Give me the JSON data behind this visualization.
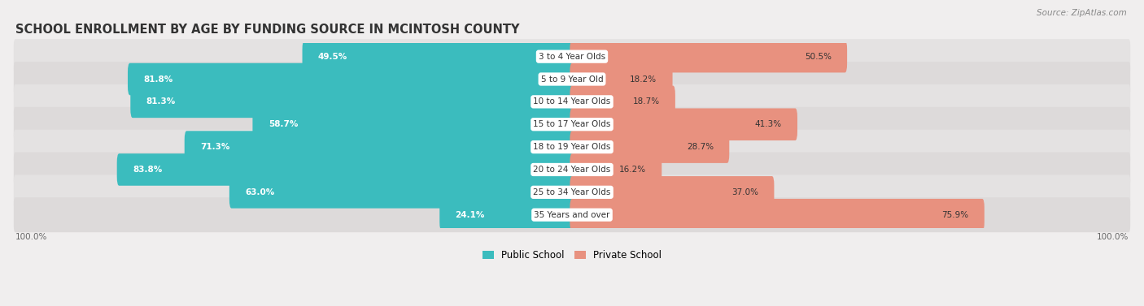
{
  "title": "SCHOOL ENROLLMENT BY AGE BY FUNDING SOURCE IN MCINTOSH COUNTY",
  "source": "Source: ZipAtlas.com",
  "categories": [
    "3 to 4 Year Olds",
    "5 to 9 Year Old",
    "10 to 14 Year Olds",
    "15 to 17 Year Olds",
    "18 to 19 Year Olds",
    "20 to 24 Year Olds",
    "25 to 34 Year Olds",
    "35 Years and over"
  ],
  "public_values": [
    49.5,
    81.8,
    81.3,
    58.7,
    71.3,
    83.8,
    63.0,
    24.1
  ],
  "private_values": [
    50.5,
    18.2,
    18.7,
    41.3,
    28.7,
    16.2,
    37.0,
    75.9
  ],
  "public_color": "#3bbcbe",
  "private_color": "#e8917f",
  "bg_color": "#f0eeee",
  "row_bg_even": "#e4e2e2",
  "row_bg_odd": "#dddada",
  "label_fontsize": 7.5,
  "title_fontsize": 10.5,
  "legend_fontsize": 8.5,
  "axis_label_fontsize": 7.5,
  "inside_label_threshold": 15
}
